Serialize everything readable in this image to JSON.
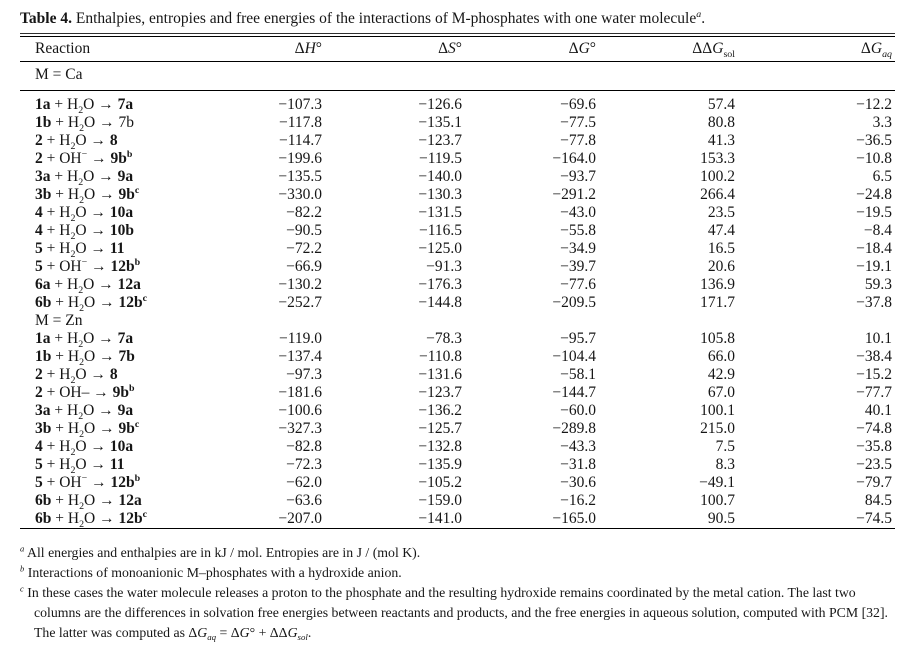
{
  "colors": {
    "background": "#ffffff",
    "text": "#161616",
    "rule": "#000000"
  },
  "caption": [
    {
      "t": "Table 4.",
      "b": true
    },
    {
      "t": " Enthalpies, entropies and free energies of the interactions of M-phosphates with one water molecule"
    },
    {
      "t": "a",
      "sup": true,
      "i": true
    },
    {
      "t": "."
    }
  ],
  "table": {
    "columns": [
      {
        "name": "reaction",
        "segs": [
          {
            "t": "Reaction"
          }
        ]
      },
      {
        "name": "delta-h",
        "segs": [
          {
            "t": "Δ"
          },
          {
            "t": "H",
            "i": true
          },
          {
            "t": "°"
          }
        ]
      },
      {
        "name": "delta-s",
        "segs": [
          {
            "t": "Δ"
          },
          {
            "t": "S",
            "i": true
          },
          {
            "t": "°"
          }
        ]
      },
      {
        "name": "delta-g",
        "segs": [
          {
            "t": "Δ"
          },
          {
            "t": "G",
            "i": true
          },
          {
            "t": "°"
          }
        ]
      },
      {
        "name": "ddelta-g-sol",
        "segs": [
          {
            "t": "ΔΔ"
          },
          {
            "t": "G",
            "i": true
          },
          {
            "t": "sol",
            "sub": true
          }
        ]
      },
      {
        "name": "delta-g-aq",
        "segs": [
          {
            "t": "Δ"
          },
          {
            "t": "G",
            "i": true
          },
          {
            "t": "aq",
            "sub": true,
            "i": true
          }
        ]
      }
    ],
    "sections": [
      {
        "label": "M = Ca",
        "rows": [
          {
            "reaction": [
              {
                "t": "1a",
                "b": true
              },
              {
                "t": " + H"
              },
              {
                "t": "2",
                "sub": true
              },
              {
                "t": "O → "
              },
              {
                "t": "7a",
                "b": true
              }
            ],
            "values": [
              "−107.3",
              "−126.6",
              "−69.6",
              "57.4",
              "−12.2"
            ]
          },
          {
            "reaction": [
              {
                "t": "1b",
                "b": true
              },
              {
                "t": " + H"
              },
              {
                "t": "2",
                "sub": true
              },
              {
                "t": "O → "
              },
              {
                "t": "7b"
              }
            ],
            "values": [
              "−117.8",
              "−135.1",
              "−77.5",
              "80.8",
              "3.3"
            ]
          },
          {
            "reaction": [
              {
                "t": "2",
                "b": true
              },
              {
                "t": " + H"
              },
              {
                "t": "2",
                "sub": true
              },
              {
                "t": "O → "
              },
              {
                "t": "8",
                "b": true
              }
            ],
            "values": [
              "−114.7",
              "−123.7",
              "−77.8",
              "41.3",
              "−36.5"
            ]
          },
          {
            "reaction": [
              {
                "t": "2",
                "b": true
              },
              {
                "t": " + OH"
              },
              {
                "t": "−",
                "sup": true
              },
              {
                "t": " → "
              },
              {
                "t": "9b",
                "b": true
              },
              {
                "t": "b",
                "b": true,
                "sup": true
              }
            ],
            "values": [
              "−199.6",
              "−119.5",
              "−164.0",
              "153.3",
              "−10.8"
            ]
          },
          {
            "reaction": [
              {
                "t": "3a",
                "b": true
              },
              {
                "t": " + H"
              },
              {
                "t": "2",
                "sub": true
              },
              {
                "t": "O → "
              },
              {
                "t": "9a",
                "b": true
              }
            ],
            "values": [
              "−135.5",
              "−140.0",
              "−93.7",
              "100.2",
              "6.5"
            ]
          },
          {
            "reaction": [
              {
                "t": "3b",
                "b": true
              },
              {
                "t": " + H"
              },
              {
                "t": "2",
                "sub": true
              },
              {
                "t": "O → "
              },
              {
                "t": "9b",
                "b": true
              },
              {
                "t": "c",
                "b": true,
                "sup": true
              }
            ],
            "values": [
              "−330.0",
              "−130.3",
              "−291.2",
              "266.4",
              "−24.8"
            ]
          },
          {
            "reaction": [
              {
                "t": "4",
                "b": true
              },
              {
                "t": " + H"
              },
              {
                "t": "2",
                "sub": true
              },
              {
                "t": "O → "
              },
              {
                "t": "10a",
                "b": true
              }
            ],
            "values": [
              "−82.2",
              "−131.5",
              "−43.0",
              "23.5",
              "−19.5"
            ]
          },
          {
            "reaction": [
              {
                "t": "4",
                "b": true
              },
              {
                "t": " + H"
              },
              {
                "t": "2",
                "sub": true
              },
              {
                "t": "O → "
              },
              {
                "t": "10b",
                "b": true
              }
            ],
            "values": [
              "−90.5",
              "−116.5",
              "−55.8",
              "47.4",
              "−8.4"
            ]
          },
          {
            "reaction": [
              {
                "t": "5",
                "b": true
              },
              {
                "t": " + H"
              },
              {
                "t": "2",
                "sub": true
              },
              {
                "t": "O → "
              },
              {
                "t": "11",
                "b": true
              }
            ],
            "values": [
              "−72.2",
              "−125.0",
              "−34.9",
              "16.5",
              "−18.4"
            ]
          },
          {
            "reaction": [
              {
                "t": "5",
                "b": true
              },
              {
                "t": " + OH"
              },
              {
                "t": "−",
                "sup": true
              },
              {
                "t": " → "
              },
              {
                "t": "12b",
                "b": true
              },
              {
                "t": "b",
                "b": true,
                "sup": true
              }
            ],
            "values": [
              "−66.9",
              "−91.3",
              "−39.7",
              "20.6",
              "−19.1"
            ]
          },
          {
            "reaction": [
              {
                "t": "6a",
                "b": true
              },
              {
                "t": " + H"
              },
              {
                "t": "2",
                "sub": true
              },
              {
                "t": "O → "
              },
              {
                "t": "12a",
                "b": true
              }
            ],
            "values": [
              "−130.2",
              "−176.3",
              "−77.6",
              "136.9",
              "59.3"
            ]
          },
          {
            "reaction": [
              {
                "t": "6b",
                "b": true
              },
              {
                "t": " + H"
              },
              {
                "t": "2",
                "sub": true
              },
              {
                "t": "O → "
              },
              {
                "t": "12b",
                "b": true
              },
              {
                "t": "c",
                "b": true,
                "sup": true
              }
            ],
            "values": [
              "−252.7",
              "−144.8",
              "−209.5",
              "171.7",
              "−37.8"
            ]
          }
        ]
      },
      {
        "label": "M = Zn",
        "rows": [
          {
            "reaction": [
              {
                "t": "1a",
                "b": true
              },
              {
                "t": " + H"
              },
              {
                "t": "2",
                "sub": true
              },
              {
                "t": "O → "
              },
              {
                "t": "7a",
                "b": true
              }
            ],
            "values": [
              "−119.0",
              "−78.3",
              "−95.7",
              "105.8",
              "10.1"
            ]
          },
          {
            "reaction": [
              {
                "t": "1b",
                "b": true
              },
              {
                "t": " + H"
              },
              {
                "t": "2",
                "sub": true
              },
              {
                "t": "O → "
              },
              {
                "t": "7b",
                "b": true
              }
            ],
            "values": [
              "−137.4",
              "−110.8",
              "−104.4",
              "66.0",
              "−38.4"
            ]
          },
          {
            "reaction": [
              {
                "t": "2",
                "b": true
              },
              {
                "t": " + H"
              },
              {
                "t": "2",
                "sub": true
              },
              {
                "t": "O → "
              },
              {
                "t": "8",
                "b": true
              }
            ],
            "values": [
              "−97.3",
              "−131.6",
              "−58.1",
              "42.9",
              "−15.2"
            ]
          },
          {
            "reaction": [
              {
                "t": "2",
                "b": true
              },
              {
                "t": " + OH– → "
              },
              {
                "t": "9b",
                "b": true
              },
              {
                "t": "b",
                "b": true,
                "sup": true
              }
            ],
            "values": [
              "−181.6",
              "−123.7",
              "−144.7",
              "67.0",
              "−77.7"
            ]
          },
          {
            "reaction": [
              {
                "t": "3a",
                "b": true
              },
              {
                "t": " + H"
              },
              {
                "t": "2",
                "sub": true
              },
              {
                "t": "O → "
              },
              {
                "t": "9a",
                "b": true
              }
            ],
            "values": [
              "−100.6",
              "−136.2",
              "−60.0",
              "100.1",
              "40.1"
            ]
          },
          {
            "reaction": [
              {
                "t": "3b",
                "b": true
              },
              {
                "t": " + H"
              },
              {
                "t": "2",
                "sub": true
              },
              {
                "t": "O → "
              },
              {
                "t": "9b",
                "b": true
              },
              {
                "t": "c",
                "b": true,
                "sup": true
              }
            ],
            "values": [
              "−327.3",
              "−125.7",
              "−289.8",
              "215.0",
              "−74.8"
            ]
          },
          {
            "reaction": [
              {
                "t": "4",
                "b": true
              },
              {
                "t": " + H"
              },
              {
                "t": "2",
                "sub": true
              },
              {
                "t": "O → "
              },
              {
                "t": "10a",
                "b": true
              }
            ],
            "values": [
              "−82.8",
              "−132.8",
              "−43.3",
              "7.5",
              "−35.8"
            ]
          },
          {
            "reaction": [
              {
                "t": "5",
                "b": true
              },
              {
                "t": " + H"
              },
              {
                "t": "2",
                "sub": true
              },
              {
                "t": "O → "
              },
              {
                "t": "11",
                "b": true
              }
            ],
            "values": [
              "−72.3",
              "−135.9",
              "−31.8",
              "8.3",
              "−23.5"
            ]
          },
          {
            "reaction": [
              {
                "t": "5",
                "b": true
              },
              {
                "t": " + OH"
              },
              {
                "t": "−",
                "sup": true
              },
              {
                "t": " → "
              },
              {
                "t": "12b",
                "b": true
              },
              {
                "t": "b",
                "b": true,
                "sup": true
              }
            ],
            "values": [
              "−62.0",
              "−105.2",
              "−30.6",
              "−49.1",
              "−79.7"
            ]
          },
          {
            "reaction": [
              {
                "t": "6b",
                "b": true
              },
              {
                "t": " + H"
              },
              {
                "t": "2",
                "sub": true
              },
              {
                "t": "O → "
              },
              {
                "t": "12a",
                "b": true
              }
            ],
            "values": [
              "−63.6",
              "−159.0",
              "−16.2",
              "100.7",
              "84.5"
            ]
          },
          {
            "reaction": [
              {
                "t": "6b",
                "b": true
              },
              {
                "t": " + H"
              },
              {
                "t": "2",
                "sub": true
              },
              {
                "t": "O → "
              },
              {
                "t": "12b",
                "b": true
              },
              {
                "t": "c",
                "b": true,
                "sup": true
              }
            ],
            "values": [
              "−207.0",
              "−141.0",
              "−165.0",
              "90.5",
              "−74.5"
            ]
          }
        ]
      }
    ]
  },
  "footnotes": [
    {
      "marker": "a",
      "segs": [
        {
          "t": "All energies and enthalpies are in kJ / mol. Entropies are in J / (mol K)."
        }
      ]
    },
    {
      "marker": "b",
      "segs": [
        {
          "t": "Interactions of monoanionic M–phosphates with a hydroxide anion."
        }
      ]
    },
    {
      "marker": "c",
      "segs": [
        {
          "t": "In these cases the water molecule releases a proton to the phosphate and the resulting hydroxide remains coordinated by the metal cation. The last two columns are the differences in solvation free energies between reactants and products, and the free energies in aqueous solution, computed with PCM [32]. The latter was computed as "
        },
        {
          "t": "Δ"
        },
        {
          "t": "G",
          "i": true
        },
        {
          "t": "aq",
          "sub": true,
          "i": true
        },
        {
          "t": " = Δ"
        },
        {
          "t": "G",
          "i": true
        },
        {
          "t": "° + ΔΔ"
        },
        {
          "t": "G",
          "i": true
        },
        {
          "t": "sol",
          "sub": true,
          "i": true
        },
        {
          "t": "."
        }
      ]
    }
  ]
}
